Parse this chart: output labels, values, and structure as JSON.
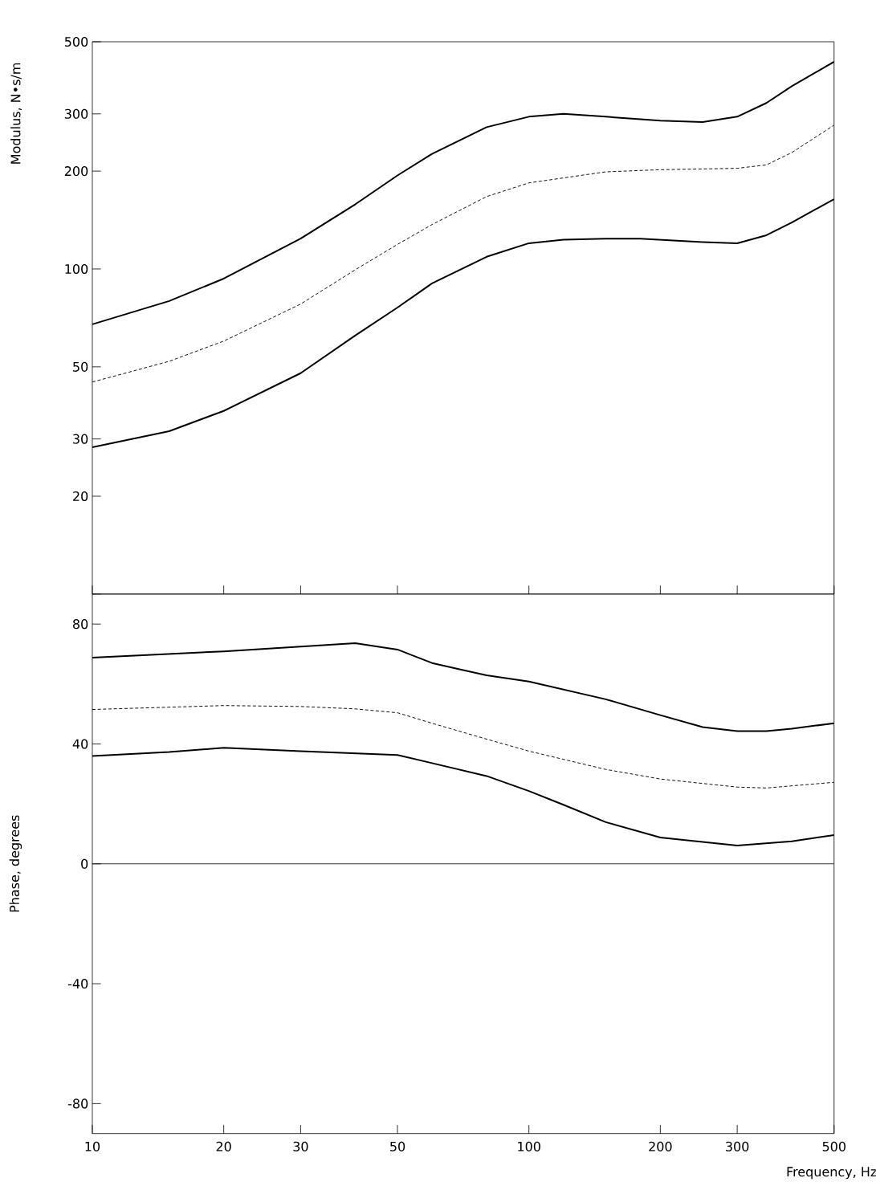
{
  "chart_data": [
    {
      "type": "line",
      "ylabel": "Modulus, N•s/m",
      "log": "xy",
      "xlim": [
        10,
        500
      ],
      "ylim": [
        10,
        500
      ],
      "xticks": [
        10,
        20,
        30,
        50,
        100,
        200,
        300,
        500
      ],
      "annotations": [
        "0"
      ],
      "yticks": [
        {
          "value": 10,
          "label": null
        },
        20,
        30,
        50,
        100,
        200,
        300,
        500
      ],
      "tick_labels": "y",
      "series": [
        {
          "color": "#000000",
          "line_style": "solid",
          "x": [
            10,
            15,
            20,
            30,
            40,
            50,
            60,
            80,
            100,
            120,
            150,
            200,
            250,
            300,
            350,
            400,
            500
          ],
          "values": [
            67.6,
            79.7,
            93.4,
            124,
            158,
            194,
            226,
            273,
            294,
            300,
            294,
            286,
            283,
            294,
            324,
            365,
            434
          ]
        },
        {
          "color": "#000000",
          "line_style": "dashed",
          "x": [
            10,
            15,
            20,
            30,
            40,
            50,
            60,
            80,
            100,
            150,
            200,
            300,
            350,
            400,
            500
          ],
          "values": [
            44.9,
            52,
            60,
            78,
            99.4,
            119,
            137,
            167,
            184,
            199,
            202,
            204,
            209,
            228,
            277
          ]
        },
        {
          "color": "#000000",
          "line_style": "solid",
          "x": [
            10,
            15,
            20,
            30,
            40,
            50,
            60,
            80,
            100,
            120,
            150,
            180,
            250,
            300,
            350,
            400,
            500
          ],
          "values": [
            28.3,
            31.7,
            36.6,
            47.8,
            62.4,
            76.1,
            90.3,
            109,
            120,
            123,
            124,
            124,
            121,
            120,
            127,
            139,
            164
          ]
        }
      ]
    },
    {
      "type": "line",
      "xlabel": "Frequency, Hz",
      "ylabel": "Phase, degrees",
      "log": "x",
      "xlim": [
        10,
        500
      ],
      "ylim": [
        -90,
        90
      ],
      "xticks": [
        10,
        20,
        30,
        50,
        100,
        200,
        300,
        500
      ],
      "yticks": [
        -80,
        -40,
        0,
        40,
        80
      ],
      "ref_lines": [
        {
          "axis": "y",
          "value": 0,
          "color": "#000000"
        }
      ],
      "series": [
        {
          "color": "#000000",
          "line_style": "solid",
          "x": [
            10,
            20,
            30,
            40,
            50,
            60,
            70,
            80,
            100,
            150,
            200,
            250,
            300,
            350,
            400,
            500
          ],
          "values": [
            68.8,
            70.9,
            72.5,
            73.6,
            71.5,
            67,
            64.8,
            62.9,
            60.8,
            54.9,
            49.6,
            45.6,
            44.3,
            44.3,
            45.1,
            46.9
          ]
        },
        {
          "color": "#000000",
          "line_style": "dashed",
          "x": [
            10,
            20,
            30,
            40,
            50,
            60,
            80,
            100,
            150,
            200,
            300,
            350,
            500
          ],
          "values": [
            51.5,
            52.8,
            52.5,
            51.7,
            50.4,
            46.9,
            41.6,
            37.6,
            31.5,
            28.3,
            25.6,
            25.3,
            27.2
          ]
        },
        {
          "color": "#000000",
          "line_style": "solid",
          "x": [
            10,
            15,
            20,
            30,
            50,
            60,
            80,
            100,
            120,
            150,
            200,
            300,
            400,
            500
          ],
          "values": [
            36,
            37.3,
            38.7,
            37.6,
            36.3,
            33.6,
            29.3,
            24.3,
            19.7,
            13.9,
            8.8,
            6.1,
            7.5,
            9.6
          ]
        }
      ]
    }
  ]
}
